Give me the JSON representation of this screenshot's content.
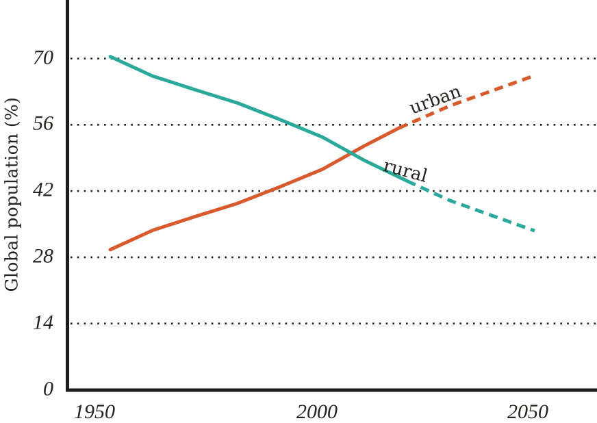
{
  "chart_data": {
    "type": "line",
    "title": "",
    "xlabel": "",
    "ylabel": "Global population (%)",
    "xlim": [
      1944,
      2065
    ],
    "ylim": [
      0,
      82
    ],
    "grid": "dotted-horizontal",
    "gridlines_at": [
      14,
      28,
      42,
      56,
      70
    ],
    "legend": "inline-labels-on-lines",
    "x_ticks": [
      {
        "year": 1950,
        "label": "1950"
      },
      {
        "year": 2000,
        "label": "2000"
      },
      {
        "year": 2050,
        "label": "2050"
      }
    ],
    "y_ticks": [
      {
        "value": 0,
        "label": "0"
      },
      {
        "value": 14,
        "label": "14"
      },
      {
        "value": 28,
        "label": "28"
      },
      {
        "value": 42,
        "label": "42"
      },
      {
        "value": 56,
        "label": "56"
      },
      {
        "value": 70,
        "label": "70"
      }
    ],
    "series": [
      {
        "name": "urban",
        "label": "urban",
        "color": "#d85a2c",
        "solid_points": [
          [
            1950,
            29.6
          ],
          [
            1960,
            33.7
          ],
          [
            1970,
            36.6
          ],
          [
            1980,
            39.4
          ],
          [
            1990,
            42.9
          ],
          [
            2000,
            46.6
          ],
          [
            2010,
            51.6
          ],
          [
            2018,
            55.3
          ]
        ],
        "dashed_points": [
          [
            2018,
            55.3
          ],
          [
            2030,
            60.0
          ],
          [
            2040,
            63.2
          ],
          [
            2050,
            66.4
          ]
        ]
      },
      {
        "name": "rural",
        "label": "rural",
        "color": "#2aa89a",
        "solid_points": [
          [
            1950,
            70.4
          ],
          [
            1960,
            66.3
          ],
          [
            1970,
            63.4
          ],
          [
            1980,
            60.6
          ],
          [
            1990,
            57.1
          ],
          [
            2000,
            53.4
          ],
          [
            2010,
            48.4
          ],
          [
            2020,
            44.1
          ]
        ],
        "dashed_points": [
          [
            2020,
            44.1
          ],
          [
            2030,
            40.0
          ],
          [
            2040,
            36.8
          ],
          [
            2050,
            33.6
          ]
        ]
      }
    ]
  },
  "colors": {
    "urban": "#d85a2c",
    "rural": "#2aa89a",
    "axis": "#1c1c1c",
    "grid_dots": "#1f1f1f",
    "text": "#262220",
    "background": "#ffffff"
  }
}
